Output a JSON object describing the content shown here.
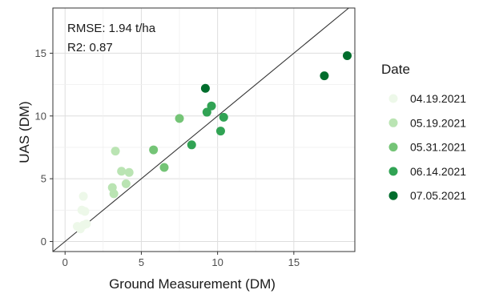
{
  "chart_data": {
    "type": "scatter",
    "xlabel": "Ground Measurement (DM)",
    "ylabel": "UAS (DM)",
    "xlim": [
      -0.8,
      19.0
    ],
    "ylim": [
      -0.8,
      18.6
    ],
    "x_ticks": [
      0,
      5,
      10,
      15
    ],
    "y_ticks": [
      0,
      5,
      10,
      15
    ],
    "grid": true,
    "reference_line": "1:1",
    "annotations": [
      "RMSE: 1.94 t/ha",
      "R2: 0.87"
    ],
    "legend_title": "Date",
    "legend_position": "right",
    "series": [
      {
        "name": "04.19.2021",
        "color": "#edf8e9",
        "points": [
          [
            0.8,
            1.2
          ],
          [
            1.0,
            1.0
          ],
          [
            1.2,
            1.3
          ],
          [
            1.4,
            1.4
          ],
          [
            1.1,
            2.5
          ],
          [
            1.3,
            2.4
          ],
          [
            1.2,
            3.6
          ]
        ]
      },
      {
        "name": "05.19.2021",
        "color": "#bae4b3",
        "points": [
          [
            3.1,
            4.3
          ],
          [
            3.2,
            3.8
          ],
          [
            3.3,
            7.2
          ],
          [
            3.7,
            5.6
          ],
          [
            4.0,
            4.6
          ],
          [
            4.2,
            5.5
          ]
        ]
      },
      {
        "name": "05.31.2021",
        "color": "#74c476",
        "points": [
          [
            5.8,
            7.3
          ],
          [
            6.5,
            5.9
          ],
          [
            7.5,
            9.8
          ]
        ]
      },
      {
        "name": "06.14.2021",
        "color": "#31a354",
        "points": [
          [
            8.3,
            7.7
          ],
          [
            9.3,
            10.3
          ],
          [
            9.6,
            10.8
          ],
          [
            10.2,
            8.8
          ],
          [
            10.4,
            9.9
          ]
        ]
      },
      {
        "name": "07.05.2021",
        "color": "#006d2c",
        "points": [
          [
            9.2,
            12.2
          ],
          [
            17.0,
            13.2
          ],
          [
            18.5,
            14.8
          ]
        ]
      }
    ]
  }
}
